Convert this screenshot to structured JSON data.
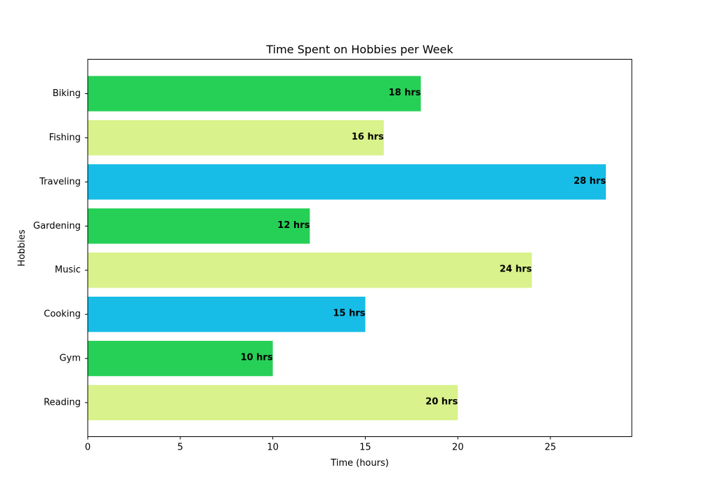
{
  "chart_data": {
    "type": "bar",
    "orientation": "horizontal",
    "title": "Time Spent on Hobbies per Week",
    "xlabel": "Time (hours)",
    "ylabel": "Hobbies",
    "categories": [
      "Reading",
      "Gym",
      "Cooking",
      "Music",
      "Gardening",
      "Traveling",
      "Fishing",
      "Biking"
    ],
    "values": [
      20,
      10,
      15,
      24,
      12,
      28,
      16,
      18
    ],
    "data_labels": [
      "20 hrs",
      "10 hrs",
      "15 hrs",
      "24 hrs",
      "12 hrs",
      "28 hrs",
      "16 hrs",
      "18 hrs"
    ],
    "colors": [
      "#d9f28b",
      "#26d056",
      "#17bde6",
      "#d9f28b",
      "#26d056",
      "#17bde6",
      "#d9f28b",
      "#26d056"
    ],
    "xlim": [
      0,
      29.4
    ],
    "xticks": [
      0,
      5,
      10,
      15,
      20,
      25
    ],
    "grid": false,
    "legend": "none"
  }
}
